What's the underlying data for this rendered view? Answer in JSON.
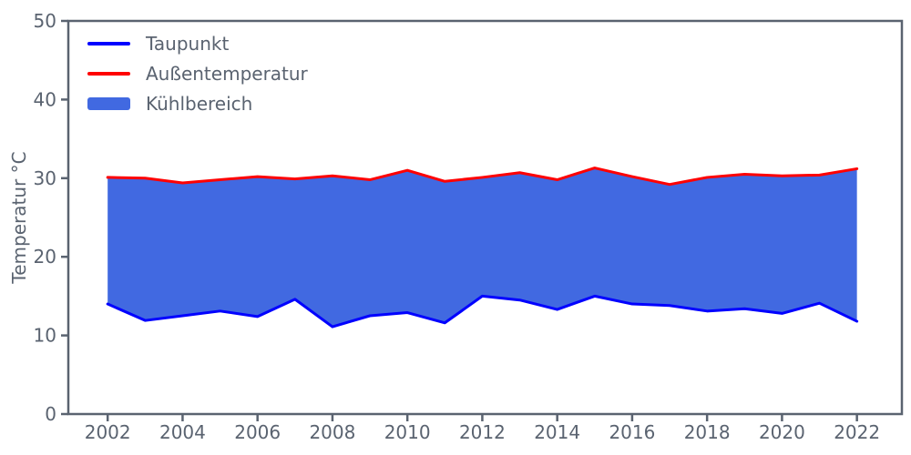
{
  "figure": {
    "ylabel": "Temperatur °C",
    "background": "#ffffff",
    "axis_color": "#5a6370",
    "text_color": "#5a6370"
  },
  "legend": {
    "position": "upper left",
    "items": [
      {
        "label": "Taupunkt",
        "type": "line",
        "color": "#0000ff"
      },
      {
        "label": "Außentemperatur",
        "type": "line",
        "color": "#ff0000"
      },
      {
        "label": "Kühlbereich",
        "type": "patch",
        "color": "#4169e1"
      }
    ]
  },
  "chart_data": {
    "type": "area",
    "title": "",
    "xlabel": "",
    "ylabel": "Temperatur °C",
    "x": [
      2002,
      2003,
      2004,
      2005,
      2006,
      2007,
      2008,
      2009,
      2010,
      2011,
      2012,
      2013,
      2014,
      2015,
      2016,
      2017,
      2018,
      2019,
      2020,
      2021,
      2022
    ],
    "series": [
      {
        "name": "Taupunkt",
        "color": "#0000ff",
        "values": [
          14.0,
          11.9,
          12.5,
          13.1,
          12.4,
          14.6,
          11.1,
          12.5,
          12.9,
          11.6,
          15.0,
          14.5,
          13.3,
          15.0,
          14.0,
          13.8,
          13.1,
          13.4,
          12.8,
          14.1,
          11.8
        ]
      },
      {
        "name": "Außentemperatur",
        "color": "#ff0000",
        "values": [
          30.1,
          30.0,
          29.4,
          29.8,
          30.2,
          29.9,
          30.3,
          29.8,
          31.0,
          29.6,
          30.1,
          30.7,
          29.8,
          31.3,
          30.2,
          29.2,
          30.1,
          30.5,
          30.3,
          30.4,
          31.2
        ]
      }
    ],
    "fill_between": {
      "name": "Kühlbereich",
      "color": "#4169e1",
      "between": [
        "Taupunkt",
        "Außentemperatur"
      ]
    },
    "xlim": [
      2000.95,
      2023.2
    ],
    "ylim": [
      0,
      50
    ],
    "xticks": [
      2002,
      2004,
      2006,
      2008,
      2010,
      2012,
      2014,
      2016,
      2018,
      2020,
      2022
    ],
    "yticks": [
      0,
      10,
      20,
      30,
      40,
      50
    ],
    "grid": false,
    "legend_position": "upper left"
  }
}
